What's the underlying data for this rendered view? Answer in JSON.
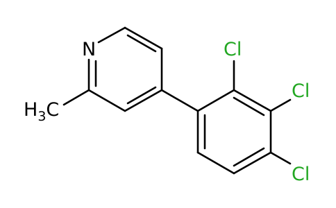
{
  "atoms": {
    "nitrogen": "N",
    "methyl": {
      "h": "H",
      "count": "3",
      "c": "C"
    },
    "chlorines": [
      "Cl",
      "Cl",
      "Cl"
    ]
  }
}
